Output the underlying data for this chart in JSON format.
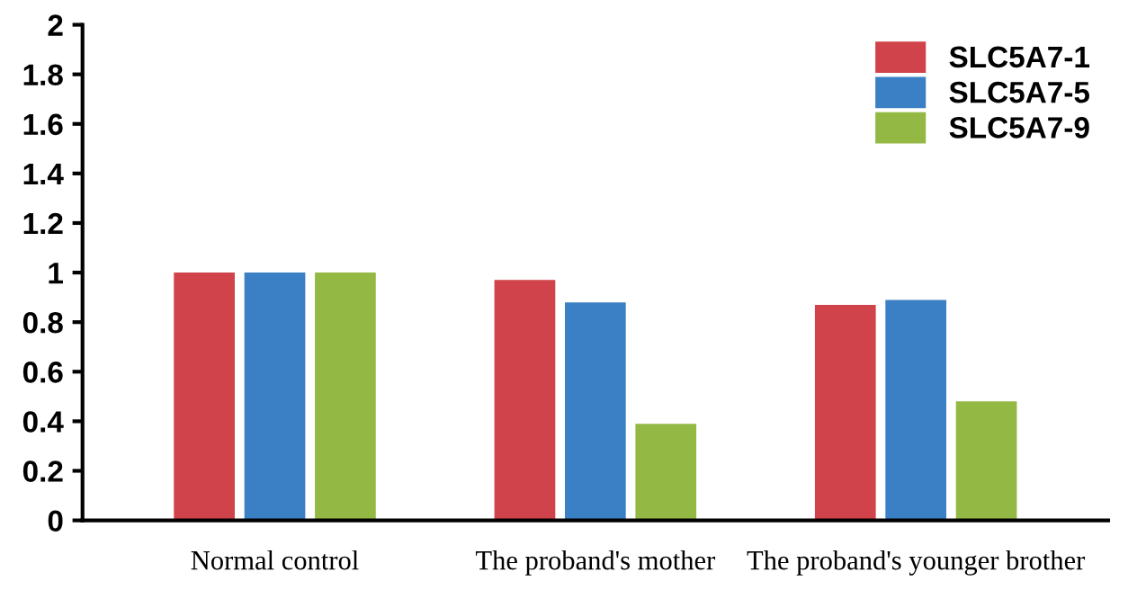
{
  "chart_data": {
    "type": "bar",
    "categories": [
      "Normal control",
      "The proband's mother",
      "The proband's younger brother"
    ],
    "series": [
      {
        "name": "SLC5A7-1",
        "color": "#d0434a",
        "values": [
          1.0,
          0.97,
          0.87
        ]
      },
      {
        "name": "SLC5A7-5",
        "color": "#3b80c4",
        "values": [
          1.0,
          0.88,
          0.89
        ]
      },
      {
        "name": "SLC5A7-9",
        "color": "#93b944",
        "values": [
          1.0,
          0.39,
          0.48
        ]
      }
    ],
    "ylim": [
      0,
      2
    ],
    "yticks": [
      0,
      0.2,
      0.4,
      0.6,
      0.8,
      1,
      1.2,
      1.4,
      1.6,
      1.8,
      2
    ],
    "grid": false,
    "legend": "top right"
  }
}
